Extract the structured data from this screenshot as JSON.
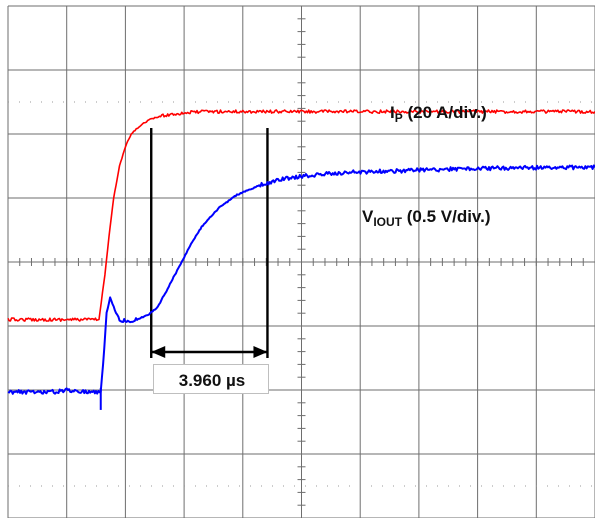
{
  "chart_data": {
    "type": "line",
    "title": "",
    "xlabel": "",
    "ylabel": "",
    "grid": true,
    "divisions": {
      "x": 10,
      "y": 8
    },
    "xlim": [
      0,
      10
    ],
    "ylim": [
      -4,
      4
    ],
    "series": [
      {
        "name": "IP (20 A/div.)",
        "color": "#ff0000",
        "x": [
          0.0,
          1.55,
          1.65,
          1.72,
          1.8,
          1.9,
          2.0,
          2.1,
          2.25,
          2.4,
          2.6,
          2.8,
          3.0,
          3.3,
          3.6,
          4.0,
          5.0,
          6.0,
          7.0,
          8.0,
          9.0,
          10.0
        ],
        "y": [
          -0.9,
          -0.9,
          -0.2,
          0.4,
          1.0,
          1.5,
          1.8,
          2.0,
          2.13,
          2.22,
          2.28,
          2.31,
          2.33,
          2.35,
          2.35,
          2.35,
          2.35,
          2.35,
          2.35,
          2.35,
          2.35,
          2.35
        ]
      },
      {
        "name": "VIOUT (0.5 V/div.)",
        "color": "#0000ff",
        "x": [
          0.0,
          0.8,
          1.0,
          1.4,
          1.58,
          1.62,
          1.68,
          1.74,
          1.82,
          1.9,
          2.0,
          2.2,
          2.4,
          2.55,
          2.7,
          2.9,
          3.1,
          3.3,
          3.6,
          3.9,
          4.3,
          4.7,
          5.2,
          5.8,
          6.5,
          7.5,
          8.5,
          10.0
        ],
        "y": [
          -2.03,
          -2.03,
          -2.0,
          -2.03,
          -2.03,
          -1.6,
          -0.8,
          -0.55,
          -0.75,
          -0.9,
          -0.92,
          -0.9,
          -0.82,
          -0.7,
          -0.45,
          -0.1,
          0.25,
          0.55,
          0.85,
          1.05,
          1.2,
          1.3,
          1.36,
          1.4,
          1.42,
          1.45,
          1.47,
          1.48
        ]
      }
    ],
    "cursors": {
      "x": [
        2.44,
        4.42
      ]
    },
    "measurement": {
      "label": "3.960 µs",
      "from": 2.44,
      "to": 4.42
    }
  },
  "labels": {
    "ip_main": "I",
    "ip_sub": "P",
    "ip_rest": " (20 A/div.)",
    "viout_main": "V",
    "viout_sub": "IOUT",
    "viout_rest": " (0.5 V/div.)",
    "delta_t": "3.960 µs"
  }
}
